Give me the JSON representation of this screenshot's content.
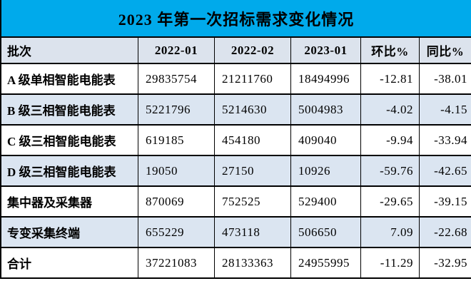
{
  "title": "2023 年第一次招标需求变化情况",
  "colors": {
    "title_bg": "#00aaeb",
    "header_bg": "#dce3ed",
    "row_bg": "#ffffff",
    "row_alt_bg": "#dbe5f1",
    "border": "#000000",
    "text": "#000000"
  },
  "chart_data": {
    "type": "table",
    "title": "2023 年第一次招标需求变化情况",
    "columns": [
      "批次",
      "2022-01",
      "2022-02",
      "2023-01",
      "环比%",
      "同比%"
    ],
    "rows": [
      [
        "A 级单相智能电能表",
        "29835754",
        "21211760",
        "18494996",
        "-12.81",
        "-38.01"
      ],
      [
        "B 级三相智能电能表",
        "5221796",
        "5214630",
        "5004983",
        "-4.02",
        "-4.15"
      ],
      [
        "C 级三相智能电能表",
        "619185",
        "454180",
        "409040",
        "-9.94",
        "-33.94"
      ],
      [
        "D 级三相智能电能表",
        "19050",
        "27150",
        "10926",
        "-59.76",
        "-42.65"
      ],
      [
        "集中器及采集器",
        "870069",
        "752525",
        "529400",
        "-29.65",
        "-39.15"
      ],
      [
        "专变采集终端",
        "655229",
        "473118",
        "506650",
        "7.09",
        "-22.68"
      ],
      [
        "合计",
        "37221083",
        "28133363",
        "24955995",
        "-11.29",
        "-32.95"
      ]
    ]
  }
}
